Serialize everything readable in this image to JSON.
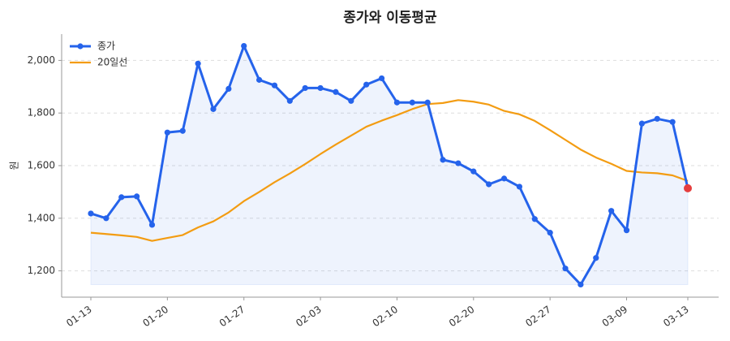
{
  "chart_data": {
    "type": "line",
    "title": "종가와 이동평균",
    "ylabel": "원",
    "categories": [
      "01-13",
      null,
      null,
      null,
      null,
      "01-20",
      null,
      null,
      null,
      null,
      "01-27",
      null,
      null,
      null,
      null,
      "02-03",
      null,
      null,
      null,
      null,
      "02-10",
      null,
      null,
      null,
      null,
      "02-20",
      null,
      null,
      null,
      null,
      "02-27",
      null,
      null,
      null,
      null,
      "03-09",
      null,
      null,
      null,
      "03-13"
    ],
    "series": [
      {
        "name": "종가",
        "color": "#2563eb",
        "values": [
          1418,
          1400,
          1480,
          1483,
          1375,
          1726,
          1732,
          1988,
          1815,
          1892,
          2055,
          1926,
          1905,
          1846,
          1895,
          1895,
          1880,
          1846,
          1908,
          1932,
          1840,
          1840,
          1840,
          1622,
          1609,
          1578,
          1529,
          1551,
          1520,
          1397,
          1345,
          1209,
          1148,
          1249,
          1428,
          1354,
          1760,
          1778,
          1766,
          1514
        ]
      },
      {
        "name": "20일선",
        "color": "#f39c12",
        "values": [
          1345,
          1340,
          1335,
          1329,
          1314,
          1325,
          1336,
          1365,
          1388,
          1422,
          1465,
          1500,
          1537,
          1570,
          1606,
          1644,
          1680,
          1714,
          1748,
          1771,
          1792,
          1815,
          1834,
          1838,
          1849,
          1843,
          1832,
          1808,
          1795,
          1770,
          1735,
          1698,
          1661,
          1631,
          1607,
          1580,
          1574,
          1571,
          1563,
          1542
        ]
      }
    ],
    "last_point_color": "#e53e3e",
    "ylim": [
      1100,
      2100
    ],
    "yticks": [
      {
        "value": 1200,
        "label": "1,200"
      },
      {
        "value": 1400,
        "label": "1,400"
      },
      {
        "value": 1600,
        "label": "1,600"
      },
      {
        "value": 1800,
        "label": "1,800"
      },
      {
        "value": 2000,
        "label": "2,000"
      }
    ],
    "grid": true,
    "legend": "upper left"
  }
}
